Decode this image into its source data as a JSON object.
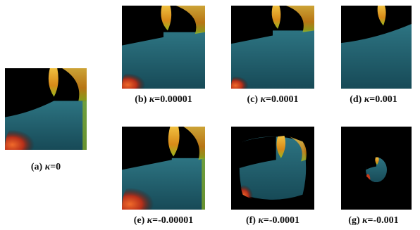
{
  "figure": {
    "panels": [
      {
        "id": "a",
        "label": "(a)",
        "symbol": "κ",
        "value": "=0",
        "kappa": 0
      },
      {
        "id": "b",
        "label": "(b)",
        "symbol": "κ",
        "value": "=0.00001",
        "kappa": 1e-05
      },
      {
        "id": "c",
        "label": "(c)",
        "symbol": "κ",
        "value": "=0.0001",
        "kappa": 0.0001
      },
      {
        "id": "d",
        "label": "(d)",
        "symbol": "κ",
        "value": "=0.001",
        "kappa": 0.001
      },
      {
        "id": "e",
        "label": "(e)",
        "symbol": "κ",
        "value": "=-0.00001",
        "kappa": -1e-05
      },
      {
        "id": "f",
        "label": "(f)",
        "symbol": "κ",
        "value": "=-0.0001",
        "kappa": -0.0001
      },
      {
        "id": "g",
        "label": "(g)",
        "symbol": "κ",
        "value": "=-0.001",
        "kappa": -0.001
      }
    ],
    "colors": {
      "teal": "#1e5a6a",
      "black": "#000000",
      "flame_yellow": "#e8a520",
      "flame_red": "#c83a1a",
      "flame_green": "#9ab820"
    }
  }
}
